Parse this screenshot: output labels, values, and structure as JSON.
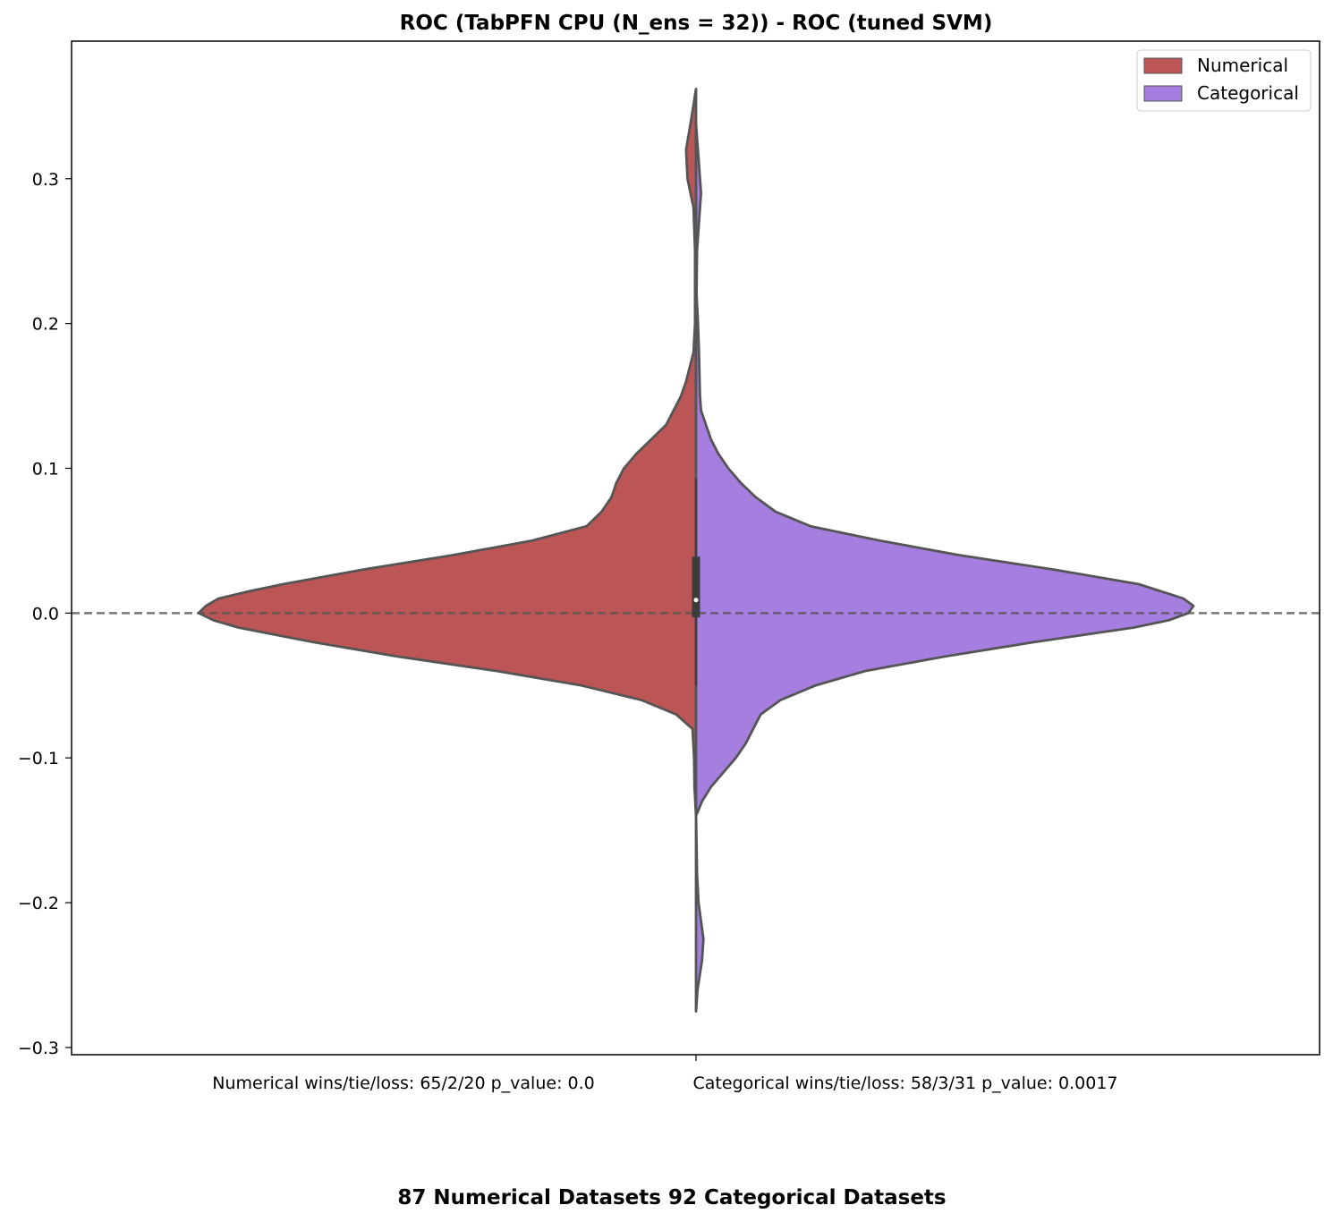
{
  "chart_data": {
    "type": "violin",
    "title": "ROC (TabPFN CPU (N_ens = 32)) - ROC (tuned SVM)",
    "xlabel": "87 Numerical Datasets 92 Categorical Datasets",
    "ylabel": "",
    "ylim": [
      -0.305,
      0.395
    ],
    "yticks": [
      -0.3,
      -0.2,
      -0.1,
      0.0,
      0.1,
      0.2,
      0.3
    ],
    "ytick_labels": [
      "−0.3",
      "−0.2",
      "−0.1",
      "0.0",
      "0.1",
      "0.2",
      "0.3"
    ],
    "reference_line": 0.0,
    "legend_position": "top-right",
    "captions": [
      "Numerical wins/tie/loss: 65/2/20 p_value: 0.0",
      "Categorical wins/tie/loss: 58/3/31 p_value: 0.0017"
    ],
    "series": [
      {
        "name": "Numerical",
        "color": "#bc5556",
        "side": "left",
        "density": [
          [
            -0.14,
            0.0
          ],
          [
            -0.12,
            0.003
          ],
          [
            -0.1,
            0.004
          ],
          [
            -0.08,
            0.007
          ],
          [
            -0.07,
            0.04
          ],
          [
            -0.06,
            0.11
          ],
          [
            -0.05,
            0.23
          ],
          [
            -0.04,
            0.4
          ],
          [
            -0.03,
            0.6
          ],
          [
            -0.02,
            0.77
          ],
          [
            -0.01,
            0.92
          ],
          [
            -0.005,
            0.97
          ],
          [
            0.0,
            1.0
          ],
          [
            0.005,
            0.985
          ],
          [
            0.01,
            0.96
          ],
          [
            0.015,
            0.9
          ],
          [
            0.02,
            0.83
          ],
          [
            0.03,
            0.67
          ],
          [
            0.04,
            0.49
          ],
          [
            0.05,
            0.33
          ],
          [
            0.06,
            0.22
          ],
          [
            0.07,
            0.19
          ],
          [
            0.08,
            0.17
          ],
          [
            0.09,
            0.16
          ],
          [
            0.1,
            0.145
          ],
          [
            0.11,
            0.12
          ],
          [
            0.12,
            0.09
          ],
          [
            0.13,
            0.06
          ],
          [
            0.14,
            0.045
          ],
          [
            0.15,
            0.03
          ],
          [
            0.16,
            0.02
          ],
          [
            0.18,
            0.005
          ],
          [
            0.2,
            0.002
          ],
          [
            0.25,
            0.002
          ],
          [
            0.28,
            0.005
          ],
          [
            0.3,
            0.017
          ],
          [
            0.32,
            0.02
          ],
          [
            0.34,
            0.01
          ],
          [
            0.362,
            0.0
          ]
        ]
      },
      {
        "name": "Categorical",
        "color": "#a57ee0",
        "side": "right",
        "density": [
          [
            -0.275,
            0.0
          ],
          [
            -0.26,
            0.003
          ],
          [
            -0.24,
            0.012
          ],
          [
            -0.225,
            0.015
          ],
          [
            -0.2,
            0.005
          ],
          [
            -0.18,
            0.002
          ],
          [
            -0.16,
            0.001
          ],
          [
            -0.14,
            0.0
          ],
          [
            -0.13,
            0.012
          ],
          [
            -0.12,
            0.03
          ],
          [
            -0.1,
            0.08
          ],
          [
            -0.09,
            0.1
          ],
          [
            -0.08,
            0.115
          ],
          [
            -0.07,
            0.13
          ],
          [
            -0.06,
            0.17
          ],
          [
            -0.05,
            0.24
          ],
          [
            -0.04,
            0.34
          ],
          [
            -0.03,
            0.5
          ],
          [
            -0.02,
            0.68
          ],
          [
            -0.01,
            0.88
          ],
          [
            -0.005,
            0.95
          ],
          [
            0.0,
            0.99
          ],
          [
            0.005,
            1.0
          ],
          [
            0.01,
            0.98
          ],
          [
            0.02,
            0.89
          ],
          [
            0.03,
            0.72
          ],
          [
            0.04,
            0.53
          ],
          [
            0.05,
            0.37
          ],
          [
            0.06,
            0.23
          ],
          [
            0.07,
            0.16
          ],
          [
            0.08,
            0.12
          ],
          [
            0.09,
            0.09
          ],
          [
            0.1,
            0.065
          ],
          [
            0.11,
            0.045
          ],
          [
            0.12,
            0.03
          ],
          [
            0.13,
            0.02
          ],
          [
            0.14,
            0.01
          ],
          [
            0.15,
            0.008
          ],
          [
            0.18,
            0.006
          ],
          [
            0.2,
            0.004
          ],
          [
            0.22,
            0.001
          ],
          [
            0.25,
            0.002
          ],
          [
            0.27,
            0.006
          ],
          [
            0.29,
            0.01
          ],
          [
            0.31,
            0.006
          ],
          [
            0.338,
            0.0
          ]
        ]
      }
    ],
    "inner_box": {
      "q1": -0.003,
      "q3": 0.039,
      "median": 0.009,
      "whisker_low": -0.05,
      "whisker_high": 0.093
    }
  }
}
